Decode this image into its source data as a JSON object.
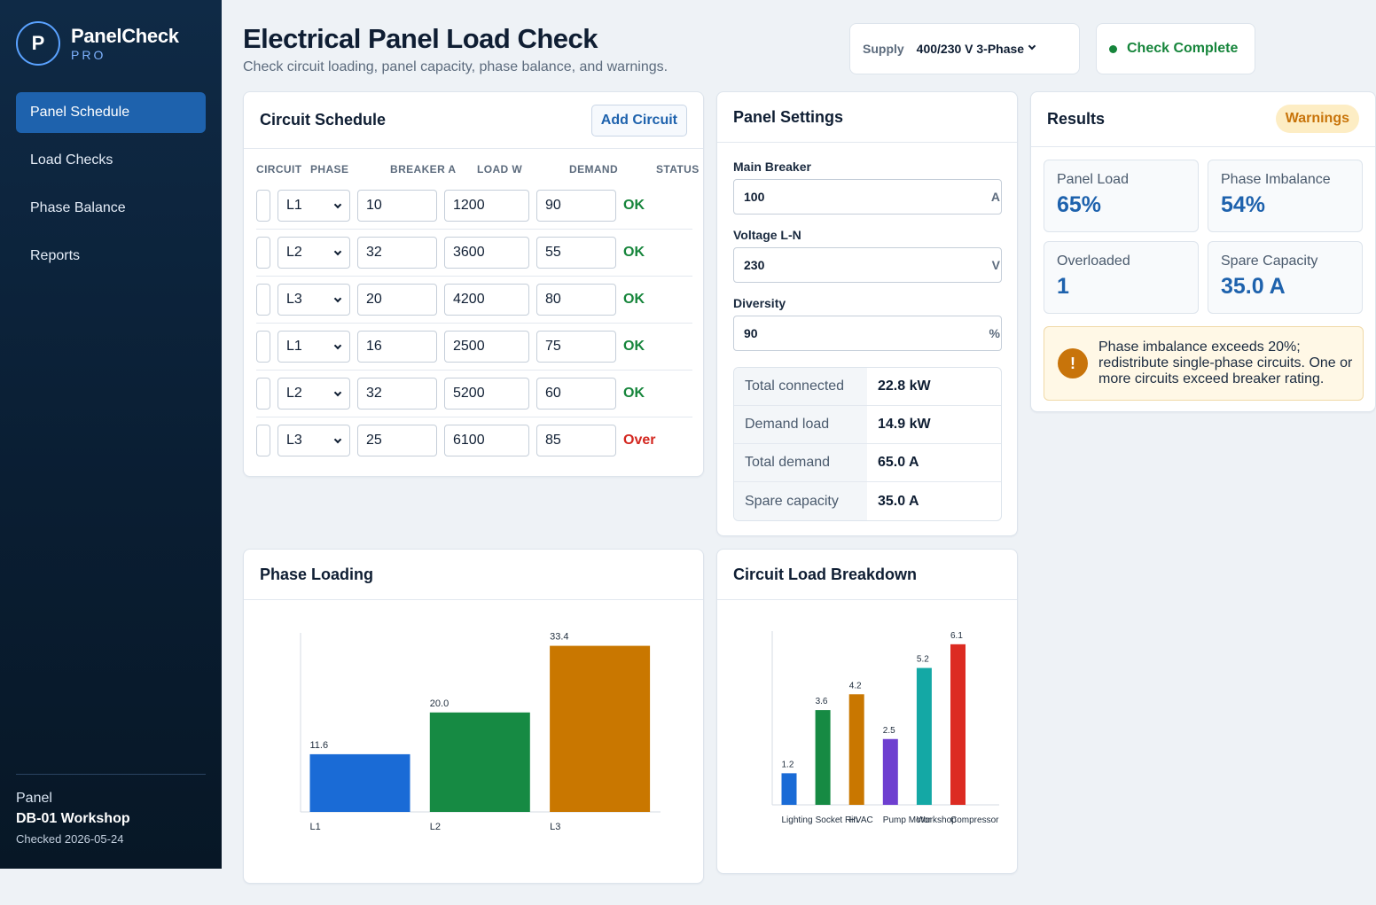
{
  "app": {
    "logo_letter": "P",
    "name": "PanelCheck",
    "tier": "PRO"
  },
  "nav": [
    {
      "label": "Panel Schedule",
      "active": true
    },
    {
      "label": "Load Checks",
      "active": false
    },
    {
      "label": "Phase Balance",
      "active": false
    },
    {
      "label": "Reports",
      "active": false
    }
  ],
  "sidebar_footer": {
    "label": "Panel",
    "panel_name": "DB-01 Workshop",
    "checked": "Checked 2026-05-24"
  },
  "header": {
    "title": "Electrical Panel Load Check",
    "subtitle": "Check circuit loading, panel capacity, phase balance, and warnings.",
    "supply_label": "Supply",
    "supply_value": "400/230 V 3-Phase",
    "status": "Check Complete"
  },
  "circuit_schedule": {
    "title": "Circuit Schedule",
    "add_button": "Add Circuit",
    "columns": [
      "CIRCUIT",
      "PHASE",
      "BREAKER A",
      "LOAD W",
      "DEMAND",
      "STATUS"
    ],
    "rows": [
      {
        "circuit": "",
        "phase": "L1",
        "breaker": "10",
        "load": "1200",
        "demand": "90",
        "status": "OK"
      },
      {
        "circuit": "",
        "phase": "L2",
        "breaker": "32",
        "load": "3600",
        "demand": "55",
        "status": "OK"
      },
      {
        "circuit": "",
        "phase": "L3",
        "breaker": "20",
        "load": "4200",
        "demand": "80",
        "status": "OK"
      },
      {
        "circuit": "",
        "phase": "L1",
        "breaker": "16",
        "load": "2500",
        "demand": "75",
        "status": "OK"
      },
      {
        "circuit": "",
        "phase": "L2",
        "breaker": "32",
        "load": "5200",
        "demand": "60",
        "status": "OK"
      },
      {
        "circuit": "",
        "phase": "L3",
        "breaker": "25",
        "load": "6100",
        "demand": "85",
        "status": "Over"
      }
    ]
  },
  "panel_settings": {
    "title": "Panel Settings",
    "main_breaker": {
      "label": "Main Breaker",
      "value": "100",
      "unit": "A"
    },
    "voltage": {
      "label": "Voltage L-N",
      "value": "230",
      "unit": "V"
    },
    "diversity": {
      "label": "Diversity",
      "value": "90",
      "unit": "%"
    },
    "summary": [
      {
        "key": "Total connected",
        "value": "22.8 kW"
      },
      {
        "key": "Demand load",
        "value": "14.9 kW"
      },
      {
        "key": "Total demand",
        "value": "65.0 A"
      },
      {
        "key": "Spare capacity",
        "value": "35.0 A"
      }
    ]
  },
  "results": {
    "title": "Results",
    "badge": "Warnings",
    "metrics": [
      {
        "label": "Panel Load",
        "value": "65%"
      },
      {
        "label": "Phase Imbalance",
        "value": "54%"
      },
      {
        "label": "Overloaded",
        "value": "1"
      },
      {
        "label": "Spare Capacity",
        "value": "35.0 A"
      }
    ],
    "warning": "Phase imbalance exceeds 20%; redistribute single-phase circuits. One or more circuits exceed breaker rating."
  },
  "phase_loading": {
    "title": "Phase Loading"
  },
  "circuit_breakdown": {
    "title": "Circuit Load Breakdown"
  },
  "chart_data": [
    {
      "type": "bar",
      "categories": [
        "L1",
        "L2",
        "L3"
      ],
      "values": [
        11.6,
        20.0,
        33.4
      ],
      "value_labels": [
        "11.6",
        "20.0",
        "33.4"
      ],
      "colors": [
        "#1a6bd6",
        "#168a43",
        "#c97700"
      ],
      "ylim": [
        0,
        36
      ]
    },
    {
      "type": "bar",
      "categories": [
        "Lighting",
        "Socket Rin",
        "HVAC",
        "Pump Motor",
        "Workshop",
        "Compressor"
      ],
      "values": [
        1.2,
        3.6,
        4.2,
        2.5,
        5.2,
        6.1
      ],
      "value_labels": [
        "1.2",
        "3.6",
        "4.2",
        "2.5",
        "5.2",
        "6.1"
      ],
      "colors": [
        "#1a6bd6",
        "#168a43",
        "#c97700",
        "#6e3fd0",
        "#14a8a5",
        "#dc2b22"
      ],
      "ylim": [
        0,
        6.6
      ]
    }
  ],
  "colors": {
    "accent": "#1e62ad",
    "ok": "#16853b",
    "over": "#d3271f",
    "warning": "#c8740a"
  }
}
